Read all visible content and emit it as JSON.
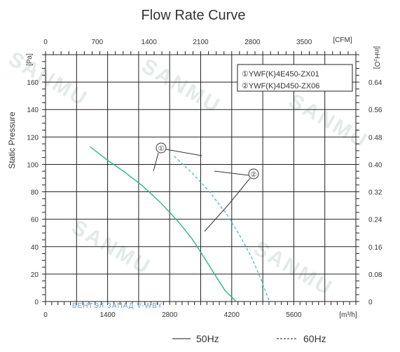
{
  "chart_data": {
    "type": "line",
    "title": "Flow Rate Curve",
    "ylabel": "Static Pressure",
    "y_left_unit": "[Pa]",
    "y_right_unit": "[inH₂O]",
    "x_top_unit": "[CFM]",
    "x_bottom_unit": "[m³/h]",
    "xlim": [
      0,
      7000
    ],
    "ylim": [
      0,
      180
    ],
    "x_ticks_bottom": [
      "0",
      "1400",
      "2800",
      "4200",
      "5600"
    ],
    "x_ticks_top": [
      "0",
      "700",
      "1400",
      "2100",
      "2800",
      "3500"
    ],
    "y_ticks_left": [
      "0",
      "20",
      "40",
      "60",
      "80",
      "100",
      "120",
      "140",
      "160"
    ],
    "y_ticks_right": [
      "0",
      "0.08",
      "0.16",
      "0.24",
      "0.32",
      "0.40",
      "0.48",
      "0.56",
      "0.64"
    ],
    "grid": true,
    "legend_box": [
      "①YWF(K)4E450-ZX01",
      "②YWF(K)4D450-ZX06"
    ],
    "markers": [
      "①",
      "②"
    ],
    "series": [
      {
        "name": "50Hz",
        "color": "#2bb58a",
        "style": "solid",
        "x": [
          1000,
          1400,
          1800,
          2200,
          2600,
          3000,
          3300,
          3600,
          3850,
          4050,
          4300
        ],
        "y": [
          113,
          103,
          94,
          84,
          72,
          58,
          46,
          31,
          18,
          8,
          0
        ]
      },
      {
        "name": "60Hz",
        "color": "#5bb8d8",
        "style": "dashed",
        "x": [
          2900,
          3300,
          3700,
          4100,
          4400,
          4650,
          4850,
          5050
        ],
        "y": [
          106,
          94,
          80,
          63,
          47,
          32,
          17,
          0
        ]
      }
    ],
    "bottom_legend": [
      {
        "label": "50Hz",
        "style": "solid"
      },
      {
        "label": "60Hz",
        "style": "dashed"
      }
    ]
  },
  "watermark": "SANMU",
  "brand_text": "ВЕНТЭЛ ЗАПАД  V-WBY",
  "colors": {
    "grid": "#222222",
    "text": "#333333"
  }
}
